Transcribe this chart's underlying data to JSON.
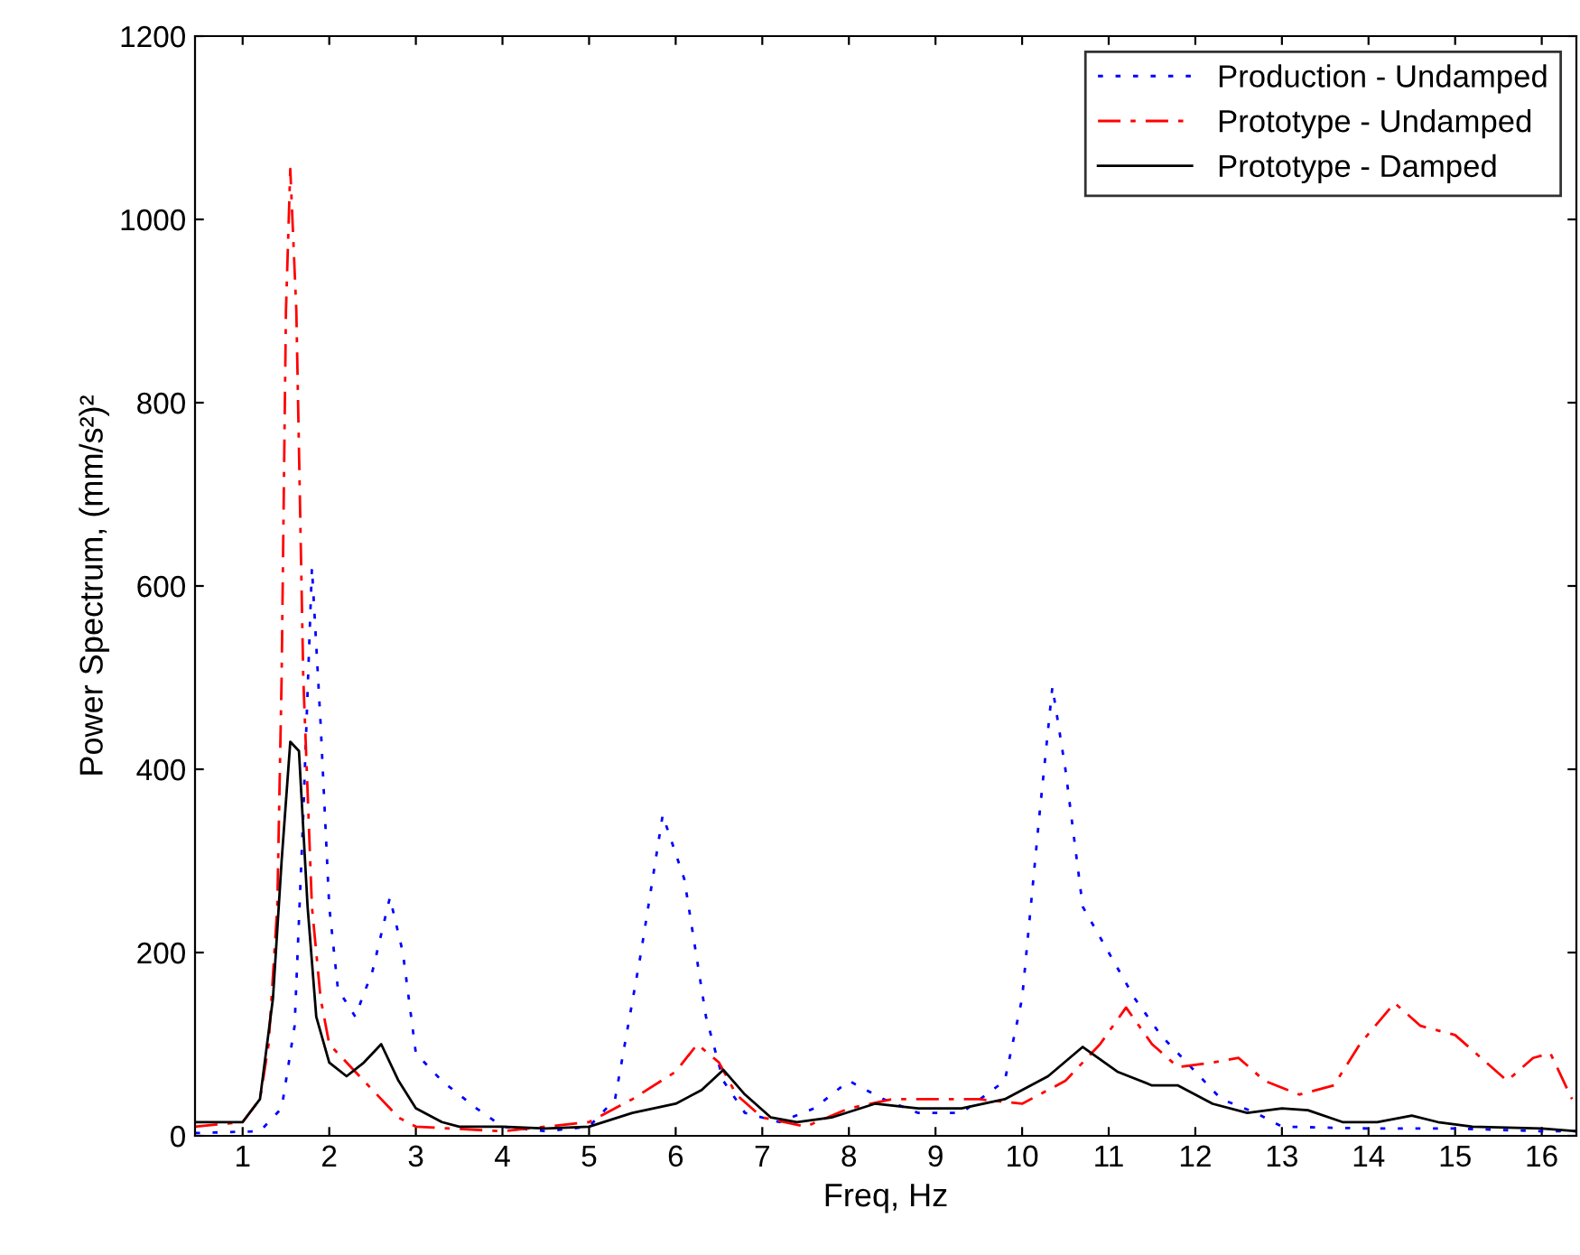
{
  "chart_data": {
    "type": "line",
    "xlabel": "Freq, Hz",
    "ylabel": "Power Spectrum, (mm/s²)²",
    "xlim": [
      0.45,
      16.4
    ],
    "xticks": [
      1,
      2,
      3,
      4,
      5,
      6,
      7,
      8,
      9,
      10,
      11,
      12,
      13,
      14,
      15,
      16
    ],
    "ylim": [
      0,
      1200
    ],
    "yticks": [
      0,
      200,
      400,
      600,
      800,
      1000,
      1200
    ],
    "grid": false,
    "legend": "top right",
    "marker": "none",
    "series": [
      {
        "name": "Production - Undamped",
        "color": "#0000ff",
        "line_style": "dotted",
        "x": [
          0.45,
          1.2,
          1.45,
          1.6,
          1.7,
          1.8,
          1.9,
          2.0,
          2.1,
          2.3,
          2.5,
          2.7,
          2.85,
          3.0,
          3.3,
          3.7,
          4.0,
          4.5,
          5.0,
          5.3,
          5.6,
          5.85,
          6.1,
          6.35,
          6.55,
          6.8,
          7.2,
          7.6,
          8.0,
          8.4,
          8.8,
          9.3,
          9.8,
          10.0,
          10.2,
          10.35,
          10.5,
          10.7,
          11.0,
          11.3,
          11.6,
          12.0,
          12.3,
          12.7,
          13.0,
          14.0,
          15.0,
          16.0,
          16.4
        ],
        "values": [
          3,
          5,
          30,
          120,
          350,
          620,
          450,
          250,
          160,
          130,
          180,
          260,
          200,
          90,
          60,
          30,
          10,
          5,
          10,
          40,
          200,
          350,
          280,
          130,
          60,
          25,
          15,
          30,
          60,
          40,
          25,
          25,
          60,
          150,
          350,
          490,
          400,
          250,
          200,
          150,
          110,
          70,
          40,
          25,
          10,
          8,
          8,
          5,
          5
        ]
      },
      {
        "name": "Prototype - Undamped",
        "color": "#ff0000",
        "line_style": "dashed",
        "x": [
          0.45,
          1.0,
          1.2,
          1.3,
          1.4,
          1.45,
          1.5,
          1.55,
          1.62,
          1.7,
          1.8,
          1.9,
          2.0,
          2.2,
          2.5,
          2.8,
          3.0,
          4.0,
          5.0,
          5.5,
          6.0,
          6.25,
          6.5,
          6.7,
          7.0,
          7.5,
          8.0,
          8.5,
          9.0,
          9.5,
          10.0,
          10.5,
          10.9,
          11.2,
          11.5,
          11.8,
          12.2,
          12.5,
          12.8,
          13.2,
          13.6,
          13.9,
          14.3,
          14.6,
          15.0,
          15.3,
          15.6,
          15.9,
          16.1,
          16.35
        ],
        "values": [
          10,
          15,
          40,
          100,
          250,
          500,
          900,
          1055,
          900,
          500,
          250,
          150,
          100,
          80,
          50,
          20,
          10,
          5,
          15,
          40,
          70,
          100,
          80,
          45,
          20,
          10,
          30,
          40,
          40,
          40,
          35,
          60,
          100,
          140,
          100,
          75,
          80,
          85,
          60,
          45,
          55,
          100,
          145,
          120,
          110,
          85,
          60,
          85,
          90,
          40
        ]
      },
      {
        "name": "Prototype - Damped",
        "color": "#000000",
        "line_style": "solid",
        "x": [
          0.45,
          1.0,
          1.2,
          1.35,
          1.45,
          1.55,
          1.65,
          1.75,
          1.85,
          2.0,
          2.2,
          2.4,
          2.6,
          2.8,
          3.0,
          3.3,
          3.5,
          4.0,
          4.5,
          5.0,
          5.5,
          6.0,
          6.3,
          6.55,
          6.8,
          7.1,
          7.4,
          7.8,
          8.3,
          8.8,
          9.3,
          9.8,
          10.3,
          10.7,
          11.1,
          11.5,
          11.8,
          12.2,
          12.6,
          13.0,
          13.3,
          13.7,
          14.1,
          14.5,
          14.8,
          15.2,
          16.0,
          16.4
        ],
        "values": [
          15,
          15,
          40,
          150,
          300,
          430,
          420,
          250,
          130,
          80,
          65,
          80,
          100,
          60,
          30,
          15,
          10,
          10,
          8,
          10,
          25,
          35,
          50,
          72,
          45,
          20,
          15,
          20,
          35,
          30,
          30,
          40,
          65,
          97,
          70,
          55,
          55,
          35,
          25,
          30,
          28,
          15,
          15,
          22,
          15,
          10,
          8,
          5
        ]
      }
    ]
  }
}
